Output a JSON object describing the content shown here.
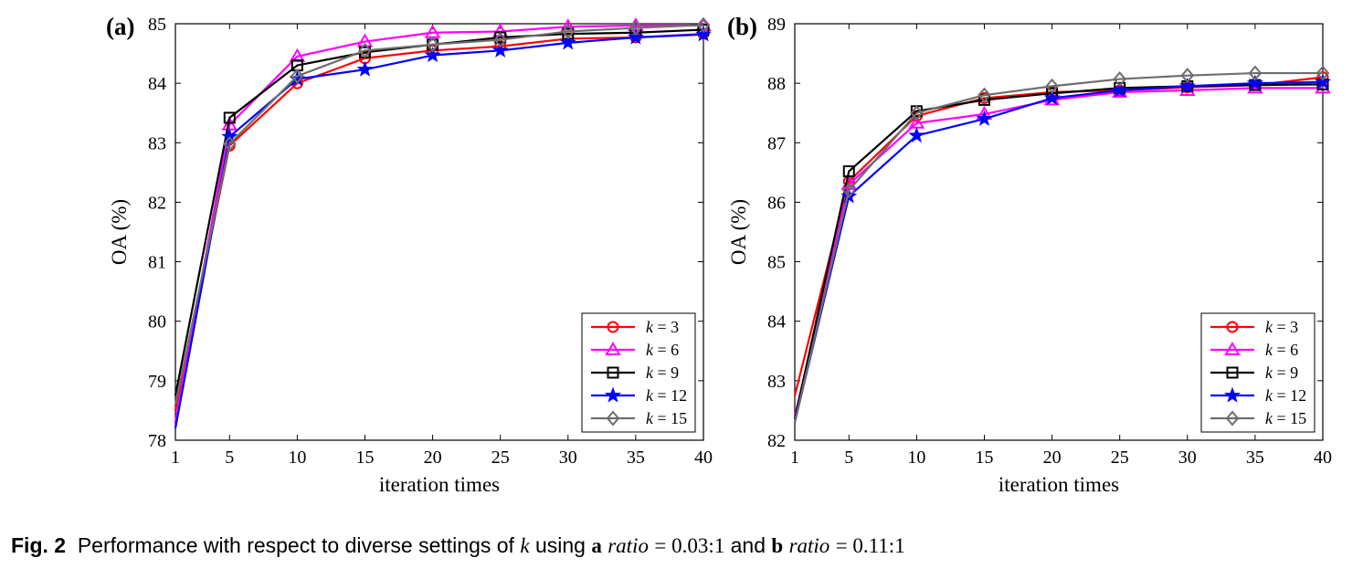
{
  "chart_data": [
    {
      "type": "line",
      "panel_label": "(a)",
      "xlabel": "iteration times",
      "ylabel": "OA (%)",
      "x": [
        1,
        5,
        10,
        15,
        20,
        25,
        30,
        35,
        40
      ],
      "xticks": [
        "1",
        "5",
        "10",
        "15",
        "20",
        "25",
        "30",
        "35",
        "40"
      ],
      "ylim": [
        78,
        85
      ],
      "yticks": [
        "78",
        "79",
        "80",
        "81",
        "82",
        "83",
        "84",
        "85"
      ],
      "legend_position": "bottom-right",
      "series": [
        {
          "name": "k = 3",
          "k": "3",
          "color": "#ff0000",
          "marker": "circle",
          "values": [
            78.5,
            82.95,
            84.0,
            84.42,
            84.55,
            84.62,
            84.75,
            84.77,
            84.83
          ]
        },
        {
          "name": "k = 6",
          "k": "6",
          "color": "#ff00ff",
          "marker": "triangle",
          "values": [
            78.3,
            83.3,
            84.45,
            84.7,
            84.85,
            84.87,
            84.95,
            84.97,
            84.97
          ]
        },
        {
          "name": "k = 9",
          "k": "9",
          "color": "#000000",
          "marker": "square",
          "values": [
            78.75,
            83.42,
            84.3,
            84.52,
            84.65,
            84.77,
            84.83,
            84.85,
            84.9
          ]
        },
        {
          "name": "k = 12",
          "k": "12",
          "color": "#0000ff",
          "marker": "star",
          "values": [
            78.2,
            83.1,
            84.07,
            84.23,
            84.47,
            84.55,
            84.68,
            84.77,
            84.82
          ]
        },
        {
          "name": "k = 15",
          "k": "15",
          "color": "#6e6e6e",
          "marker": "diamond",
          "values": [
            78.6,
            82.98,
            84.12,
            84.55,
            84.65,
            84.73,
            84.87,
            84.93,
            84.98
          ]
        }
      ]
    },
    {
      "type": "line",
      "panel_label": "(b)",
      "xlabel": "iteration times",
      "ylabel": "OA (%)",
      "x": [
        1,
        5,
        10,
        15,
        20,
        25,
        30,
        35,
        40
      ],
      "xticks": [
        "1",
        "5",
        "10",
        "15",
        "20",
        "25",
        "30",
        "35",
        "40"
      ],
      "ylim": [
        82,
        89
      ],
      "yticks": [
        "82",
        "83",
        "84",
        "85",
        "86",
        "87",
        "88",
        "89"
      ],
      "legend_position": "bottom-right",
      "series": [
        {
          "name": "k = 3",
          "k": "3",
          "color": "#ff0000",
          "marker": "circle",
          "values": [
            82.75,
            86.35,
            87.45,
            87.75,
            87.85,
            87.88,
            87.93,
            87.97,
            88.1
          ]
        },
        {
          "name": "k = 6",
          "k": "6",
          "color": "#ff00ff",
          "marker": "triangle",
          "values": [
            82.4,
            86.3,
            87.33,
            87.48,
            87.72,
            87.85,
            87.88,
            87.92,
            87.92
          ]
        },
        {
          "name": "k = 9",
          "k": "9",
          "color": "#000000",
          "marker": "square",
          "values": [
            82.35,
            86.52,
            87.53,
            87.72,
            87.83,
            87.92,
            87.95,
            87.97,
            87.98
          ]
        },
        {
          "name": "k = 12",
          "k": "12",
          "color": "#0000ff",
          "marker": "star",
          "values": [
            82.3,
            86.1,
            87.12,
            87.4,
            87.75,
            87.88,
            87.95,
            88.0,
            88.02
          ]
        },
        {
          "name": "k = 15",
          "k": "15",
          "color": "#6e6e6e",
          "marker": "diamond",
          "values": [
            82.3,
            86.2,
            87.5,
            87.8,
            87.95,
            88.07,
            88.13,
            88.17,
            88.17
          ]
        }
      ]
    }
  ],
  "caption": {
    "label": "Fig. 2",
    "text_1": "Performance with respect to diverse settings of",
    "var_k": "k",
    "text_2": "using",
    "letter_a": "a",
    "ratio_word": "ratio",
    "ratio_a": "= 0.03:1",
    "text_and": "and",
    "letter_b": "b",
    "ratio_b": "= 0.11:1"
  }
}
